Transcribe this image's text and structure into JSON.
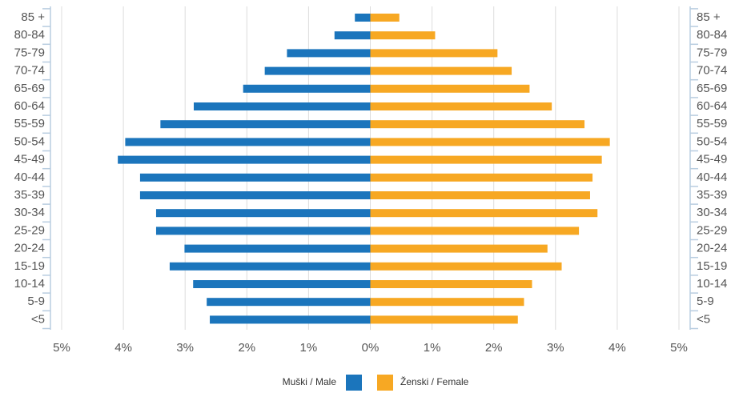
{
  "chart_data": {
    "type": "bar",
    "orientation": "horizontal",
    "categories": [
      "85 +",
      "80-84",
      "75-79",
      "70-74",
      "65-69",
      "60-64",
      "55-59",
      "50-54",
      "45-49",
      "40-44",
      "35-39",
      "30-34",
      "25-29",
      "20-24",
      "15-19",
      "10-14",
      "5-9",
      "<5"
    ],
    "series": [
      {
        "name": "Muški / Male",
        "color": "#1b75bc",
        "values": [
          -0.25,
          -0.58,
          -1.35,
          -1.71,
          -2.06,
          -2.86,
          -3.4,
          -3.97,
          -4.09,
          -3.73,
          -3.73,
          -3.47,
          -3.47,
          -3.01,
          -3.25,
          -2.87,
          -2.65,
          -2.6
        ]
      },
      {
        "name": "Ženski / Female",
        "color": "#f7a823",
        "values": [
          0.47,
          1.05,
          2.06,
          2.29,
          2.58,
          2.94,
          3.47,
          3.88,
          3.75,
          3.6,
          3.56,
          3.68,
          3.38,
          2.87,
          3.1,
          2.62,
          2.49,
          2.39
        ]
      }
    ],
    "xlim": [
      -5,
      5
    ],
    "xticks": [
      {
        "value": -5,
        "label": "5%"
      },
      {
        "value": -4,
        "label": "4%"
      },
      {
        "value": -3,
        "label": "3%"
      },
      {
        "value": -2,
        "label": "2%"
      },
      {
        "value": -1,
        "label": "1%"
      },
      {
        "value": 0,
        "label": "0%"
      },
      {
        "value": 1,
        "label": "1%"
      },
      {
        "value": 2,
        "label": "2%"
      },
      {
        "value": 3,
        "label": "3%"
      },
      {
        "value": 4,
        "label": "4%"
      },
      {
        "value": 5,
        "label": "5%"
      }
    ],
    "grid": true,
    "legend": "bottom"
  }
}
